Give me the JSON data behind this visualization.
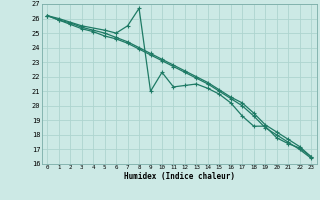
{
  "xlabel": "Humidex (Indice chaleur)",
  "xlim": [
    -0.5,
    23.5
  ],
  "ylim": [
    16,
    27
  ],
  "yticks": [
    16,
    17,
    18,
    19,
    20,
    21,
    22,
    23,
    24,
    25,
    26,
    27
  ],
  "xticks": [
    0,
    1,
    2,
    3,
    4,
    5,
    6,
    7,
    8,
    9,
    10,
    11,
    12,
    13,
    14,
    15,
    16,
    17,
    18,
    19,
    20,
    21,
    22,
    23
  ],
  "bg_color": "#cce9e5",
  "grid_color": "#aed4cf",
  "line_color": "#1e7a65",
  "line1_x": [
    0,
    1,
    3,
    5,
    6,
    7,
    8,
    9,
    10,
    11,
    12,
    13,
    14,
    15,
    16,
    17,
    18,
    19,
    20,
    21,
    22,
    23
  ],
  "line1_y": [
    26.2,
    26.0,
    25.5,
    25.2,
    25.0,
    25.5,
    26.7,
    21.0,
    22.3,
    21.3,
    21.4,
    21.5,
    21.2,
    20.8,
    20.2,
    19.3,
    18.6,
    18.6,
    17.8,
    17.4,
    17.1,
    16.5
  ],
  "line2_x": [
    0,
    1,
    2,
    3,
    4,
    5,
    6,
    7,
    8,
    9,
    10,
    11,
    12,
    13,
    14,
    15,
    16,
    17,
    18,
    19,
    20,
    21,
    22,
    23
  ],
  "line2_y": [
    26.2,
    25.9,
    25.7,
    25.4,
    25.2,
    25.0,
    24.7,
    24.4,
    24.0,
    23.6,
    23.2,
    22.8,
    22.4,
    22.0,
    21.6,
    21.1,
    20.6,
    20.2,
    19.5,
    18.7,
    18.2,
    17.7,
    17.2,
    16.5
  ],
  "line3_x": [
    0,
    1,
    2,
    3,
    4,
    5,
    6,
    7,
    8,
    9,
    10,
    11,
    12,
    13,
    14,
    15,
    16,
    17,
    18,
    19,
    20,
    21,
    22,
    23
  ],
  "line3_y": [
    26.2,
    25.9,
    25.6,
    25.3,
    25.1,
    24.8,
    24.6,
    24.3,
    23.9,
    23.5,
    23.1,
    22.7,
    22.3,
    21.9,
    21.5,
    21.0,
    20.5,
    20.0,
    19.3,
    18.5,
    18.0,
    17.5,
    17.0,
    16.4
  ]
}
